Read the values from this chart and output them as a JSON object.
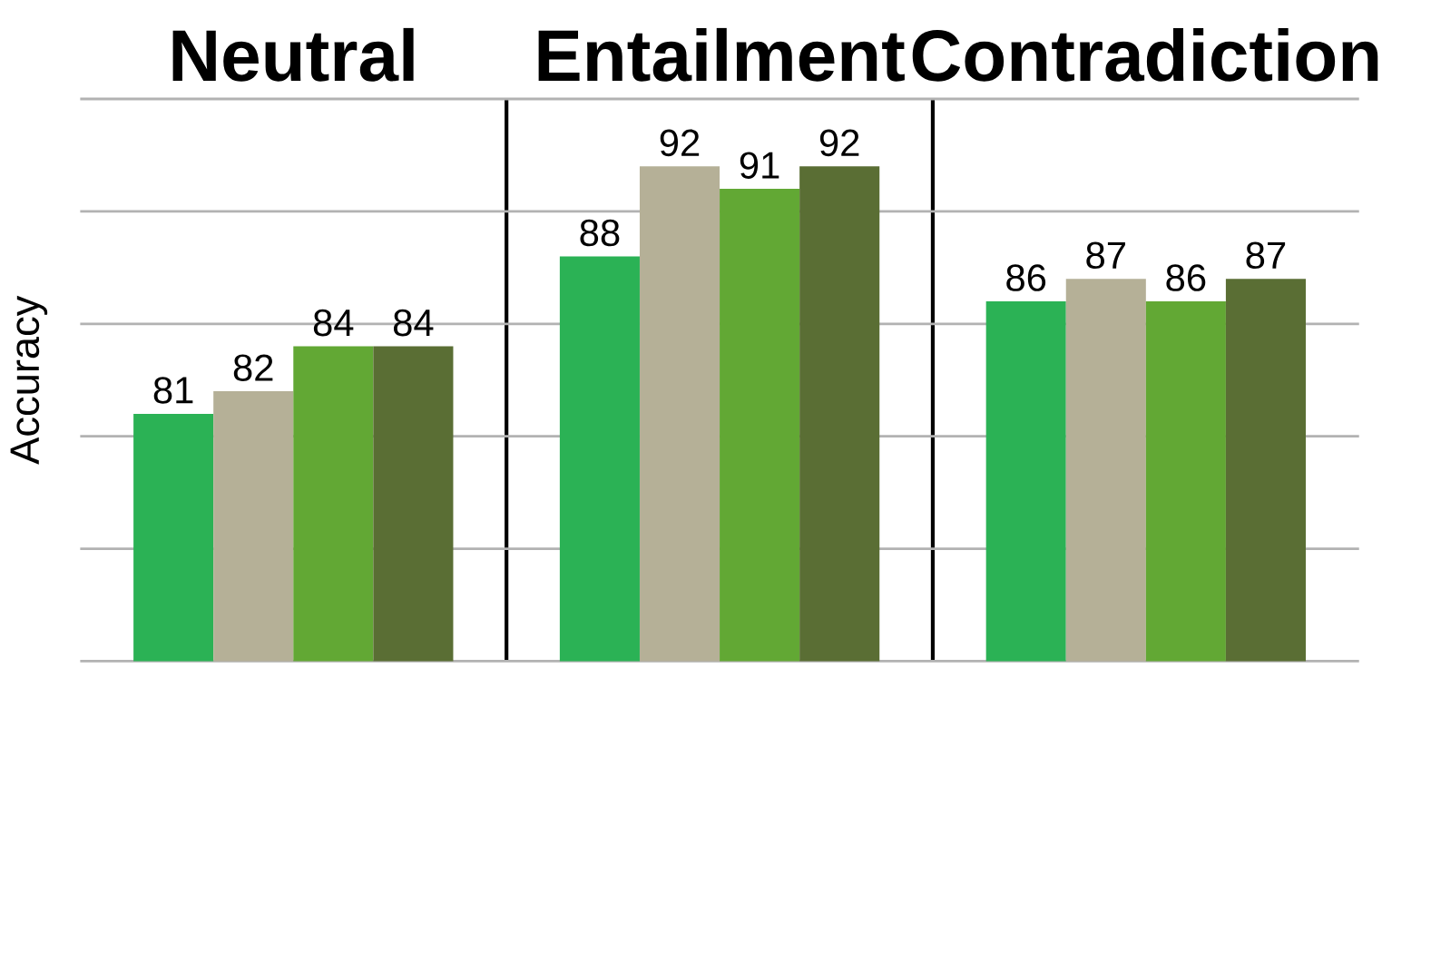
{
  "chart_data": {
    "type": "bar",
    "ylabel": "Accuracy",
    "categories": [
      "Neutral",
      "Entailment",
      "Contradiction"
    ],
    "series": [
      {
        "color": "#2bb255",
        "values": [
          81,
          88,
          86
        ]
      },
      {
        "color": "#b5b097",
        "values": [
          82,
          92,
          87
        ]
      },
      {
        "color": "#62a834",
        "values": [
          84,
          91,
          86
        ]
      },
      {
        "color": "#5a6e34",
        "values": [
          84,
          92,
          87
        ]
      }
    ],
    "ylim": [
      70,
      95
    ],
    "yticks": [
      {
        "value": 70,
        "label": null
      },
      {
        "value": 75,
        "label": null
      },
      {
        "value": 80,
        "label": null
      },
      {
        "value": 85,
        "label": null
      },
      {
        "value": 90,
        "label": null
      },
      {
        "value": 95,
        "label": null
      }
    ],
    "grid": "y",
    "tick_labels": "x",
    "data_labels": true
  }
}
